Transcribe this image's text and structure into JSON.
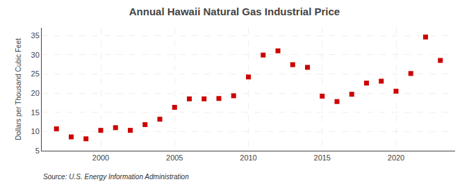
{
  "chart_data": {
    "type": "scatter",
    "title": "Annual Hawaii Natural Gas Industrial Price",
    "ylabel": "Dollars per Thousand Cubic Feet",
    "annotations": [
      "Source: U.S. Energy Information Administration"
    ],
    "x": [
      1997,
      1998,
      1999,
      2000,
      2001,
      2002,
      2003,
      2004,
      2005,
      2006,
      2007,
      2008,
      2009,
      2010,
      2011,
      2012,
      2013,
      2014,
      2015,
      2016,
      2017,
      2018,
      2019,
      2020,
      2021,
      2022,
      2023
    ],
    "values": [
      10.7,
      8.6,
      8.1,
      10.3,
      11.0,
      10.3,
      11.8,
      13.2,
      16.3,
      18.5,
      18.5,
      18.6,
      19.3,
      24.2,
      29.9,
      31.0,
      27.4,
      26.7,
      19.2,
      17.8,
      19.7,
      22.6,
      23.1,
      20.5,
      25.1,
      34.6,
      28.5
    ],
    "color": "#cc0000",
    "marker": "square",
    "xlim": [
      1996,
      2024
    ],
    "xticks": [
      2000,
      2005,
      2010,
      2015,
      2020
    ],
    "ylim": [
      5,
      37
    ],
    "yticks": [
      5,
      10,
      15,
      20,
      25,
      30,
      35
    ],
    "grid": true
  }
}
